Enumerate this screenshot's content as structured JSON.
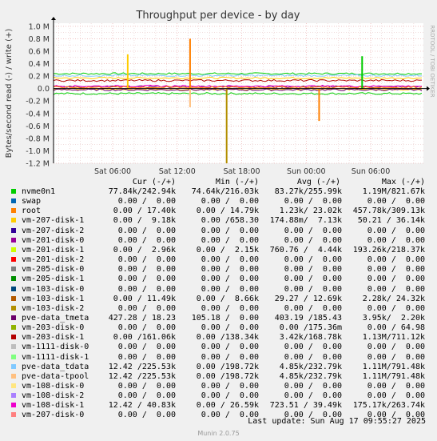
{
  "colors": {
    "background": "#f0f0f0",
    "plot_background": "#ffffff",
    "grid_major": "#e8a0a0",
    "grid_minor": "#e8c8c8",
    "axis": "#000000"
  },
  "chart_data": {
    "type": "line",
    "title": "Throughput per device - by day",
    "ylabel": "Bytes/second read (-) / write (+)",
    "side_label": "RRDTOOL / TOBI OETIKER",
    "y_ticks": [
      "1.0 M",
      "0.8 M",
      "0.6 M",
      "0.4 M",
      "0.2 M",
      "0.0",
      "-0.2 M",
      "-0.4 M",
      "-0.6 M",
      "-0.8 M",
      "-1.0 M",
      "-1.2 M"
    ],
    "y_values": [
      1.0,
      0.8,
      0.6,
      0.4,
      0.2,
      0.0,
      -0.2,
      -0.4,
      -0.6,
      -0.8,
      -1.0,
      -1.2
    ],
    "ylim": [
      -1.2,
      1.05
    ],
    "x_ticks": [
      "Sat 06:00",
      "Sat 12:00",
      "Sat 18:00",
      "Sun 00:00",
      "Sun 06:00"
    ],
    "x_tick_hours": [
      6,
      12,
      18,
      24,
      30
    ],
    "x_range_hours": [
      0.5,
      34.9
    ],
    "grid": true,
    "series_overview": [
      {
        "name": "nvme0n1",
        "write_level": 0.24,
        "read_level": -0.08
      },
      {
        "name": "vm-207-disk-1",
        "write_level": 0.17,
        "read_level": -0.01
      },
      {
        "name": "pve-data_tmeta",
        "write_level": 0.03,
        "read_level": -0.02
      }
    ],
    "spikes": [
      {
        "hour": 7.4,
        "value": 0.55
      },
      {
        "hour": 13.2,
        "value": 0.8
      },
      {
        "hour": 13.2,
        "value": -0.3
      },
      {
        "hour": 16.6,
        "value": -1.2
      },
      {
        "hour": 25.2,
        "value": -0.52
      },
      {
        "hour": 29.2,
        "value": 0.52
      }
    ]
  },
  "legend": {
    "headers": {
      "cur": "Cur (-/+)",
      "min": "Min (-/+)",
      "avg": "Avg (-/+)",
      "max": "Max (-/+)"
    },
    "rows": [
      {
        "name": "nvme0n1",
        "color": "#00cc00",
        "cur": "77.84k/242.94k",
        "min": "74.64k/216.03k",
        "avg": "83.27k/255.99k",
        "max": "1.19M/821.67k"
      },
      {
        "name": "swap",
        "color": "#0066b3",
        "cur": "0.00 /  0.00",
        "min": "0.00 /  0.00",
        "avg": "0.00 /  0.00",
        "max": "0.00 /  0.00"
      },
      {
        "name": "root",
        "color": "#ff8000",
        "cur": "0.00 / 17.40k",
        "min": "0.00 / 14.79k",
        "avg": "1.23k/ 23.02k",
        "max": "457.78k/309.13k"
      },
      {
        "name": "vm-207-disk-1",
        "color": "#ffcc00",
        "cur": "0.00 /  9.18k",
        "min": "0.00 /658.30",
        "avg": "174.88m/  7.13k",
        "max": "50.21 / 36.14k"
      },
      {
        "name": "vm-207-disk-2",
        "color": "#330099",
        "cur": "0.00 /  0.00",
        "min": "0.00 /  0.00",
        "avg": "0.00 /  0.00",
        "max": "0.00 /  0.00"
      },
      {
        "name": "vm-201-disk-0",
        "color": "#990099",
        "cur": "0.00 /  0.00",
        "min": "0.00 /  0.00",
        "avg": "0.00 /  0.00",
        "max": "0.00 /  0.00"
      },
      {
        "name": "vm-201-disk-1",
        "color": "#ccff00",
        "cur": "0.00 /  2.96k",
        "min": "0.00 /  2.15k",
        "avg": "760.76 /  4.44k",
        "max": "193.26k/218.37k"
      },
      {
        "name": "vm-201-disk-2",
        "color": "#ff0000",
        "cur": "0.00 /  0.00",
        "min": "0.00 /  0.00",
        "avg": "0.00 /  0.00",
        "max": "0.00 /  0.00"
      },
      {
        "name": "vm-205-disk-0",
        "color": "#808080",
        "cur": "0.00 /  0.00",
        "min": "0.00 /  0.00",
        "avg": "0.00 /  0.00",
        "max": "0.00 /  0.00"
      },
      {
        "name": "vm-205-disk-1",
        "color": "#008f00",
        "cur": "0.00 /  0.00",
        "min": "0.00 /  0.00",
        "avg": "0.00 /  0.00",
        "max": "0.00 /  0.00"
      },
      {
        "name": "vm-103-disk-0",
        "color": "#00487d",
        "cur": "0.00 /  0.00",
        "min": "0.00 /  0.00",
        "avg": "0.00 /  0.00",
        "max": "0.00 /  0.00"
      },
      {
        "name": "vm-103-disk-1",
        "color": "#b35a00",
        "cur": "0.00 / 11.49k",
        "min": "0.00 /  8.66k",
        "avg": "29.27 / 12.69k",
        "max": "2.28k/ 24.32k"
      },
      {
        "name": "vm-103-disk-2",
        "color": "#b38f00",
        "cur": "0.00 /  0.00",
        "min": "0.00 /  0.00",
        "avg": "0.00 /  0.00",
        "max": "0.00 /  0.00"
      },
      {
        "name": "pve-data_tmeta",
        "color": "#6b006b",
        "cur": "427.28 / 18.23",
        "min": "105.18 /  0.00",
        "avg": "403.19 /185.43",
        "max": "3.95k/  2.20k"
      },
      {
        "name": "vm-203-disk-0",
        "color": "#8fb300",
        "cur": "0.00 /  0.00",
        "min": "0.00 /  0.00",
        "avg": "0.00 /175.36m",
        "max": "0.00 / 64.98"
      },
      {
        "name": "vm-203-disk-1",
        "color": "#b30000",
        "cur": "0.00 /161.06k",
        "min": "0.00 /138.34k",
        "avg": "3.42k/168.78k",
        "max": "1.13M/711.12k"
      },
      {
        "name": "vm-1111-disk-0",
        "color": "#bebebe",
        "cur": "0.00 /  0.00",
        "min": "0.00 /  0.00",
        "avg": "0.00 /  0.00",
        "max": "0.00 /  0.00"
      },
      {
        "name": "vm-1111-disk-1",
        "color": "#80ff80",
        "cur": "0.00 /  0.00",
        "min": "0.00 /  0.00",
        "avg": "0.00 /  0.00",
        "max": "0.00 /  0.00"
      },
      {
        "name": "pve-data_tdata",
        "color": "#80c9ff",
        "cur": "12.42 /225.53k",
        "min": "0.00 /198.72k",
        "avg": "4.85k/232.79k",
        "max": "1.11M/791.48k"
      },
      {
        "name": "pve-data-tpool",
        "color": "#ffc080",
        "cur": "12.42 /225.53k",
        "min": "0.00 /198.72k",
        "avg": "4.85k/232.79k",
        "max": "1.11M/791.48k"
      },
      {
        "name": "vm-108-disk-0",
        "color": "#ffe680",
        "cur": "0.00 /  0.00",
        "min": "0.00 /  0.00",
        "avg": "0.00 /  0.00",
        "max": "0.00 /  0.00"
      },
      {
        "name": "vm-108-disk-2",
        "color": "#aa80ff",
        "cur": "0.00 /  0.00",
        "min": "0.00 /  0.00",
        "avg": "0.00 /  0.00",
        "max": "0.00 /  0.00"
      },
      {
        "name": "vm-108-disk-1",
        "color": "#ee00cc",
        "cur": "12.42 / 40.83k",
        "min": "0.00 / 26.59k",
        "avg": "723.51 / 39.49k",
        "max": "175.17k/263.74k"
      },
      {
        "name": "vm-207-disk-0",
        "color": "#ff8080",
        "cur": "0.00 /  0.00",
        "min": "0.00 /  0.00",
        "avg": "0.00 /  0.00",
        "max": "0.00 /  0.00"
      }
    ]
  },
  "footer": {
    "last_update": "Last update: Sun Aug 17 09:55:27 2025",
    "munin_version": "Munin 2.0.75"
  }
}
